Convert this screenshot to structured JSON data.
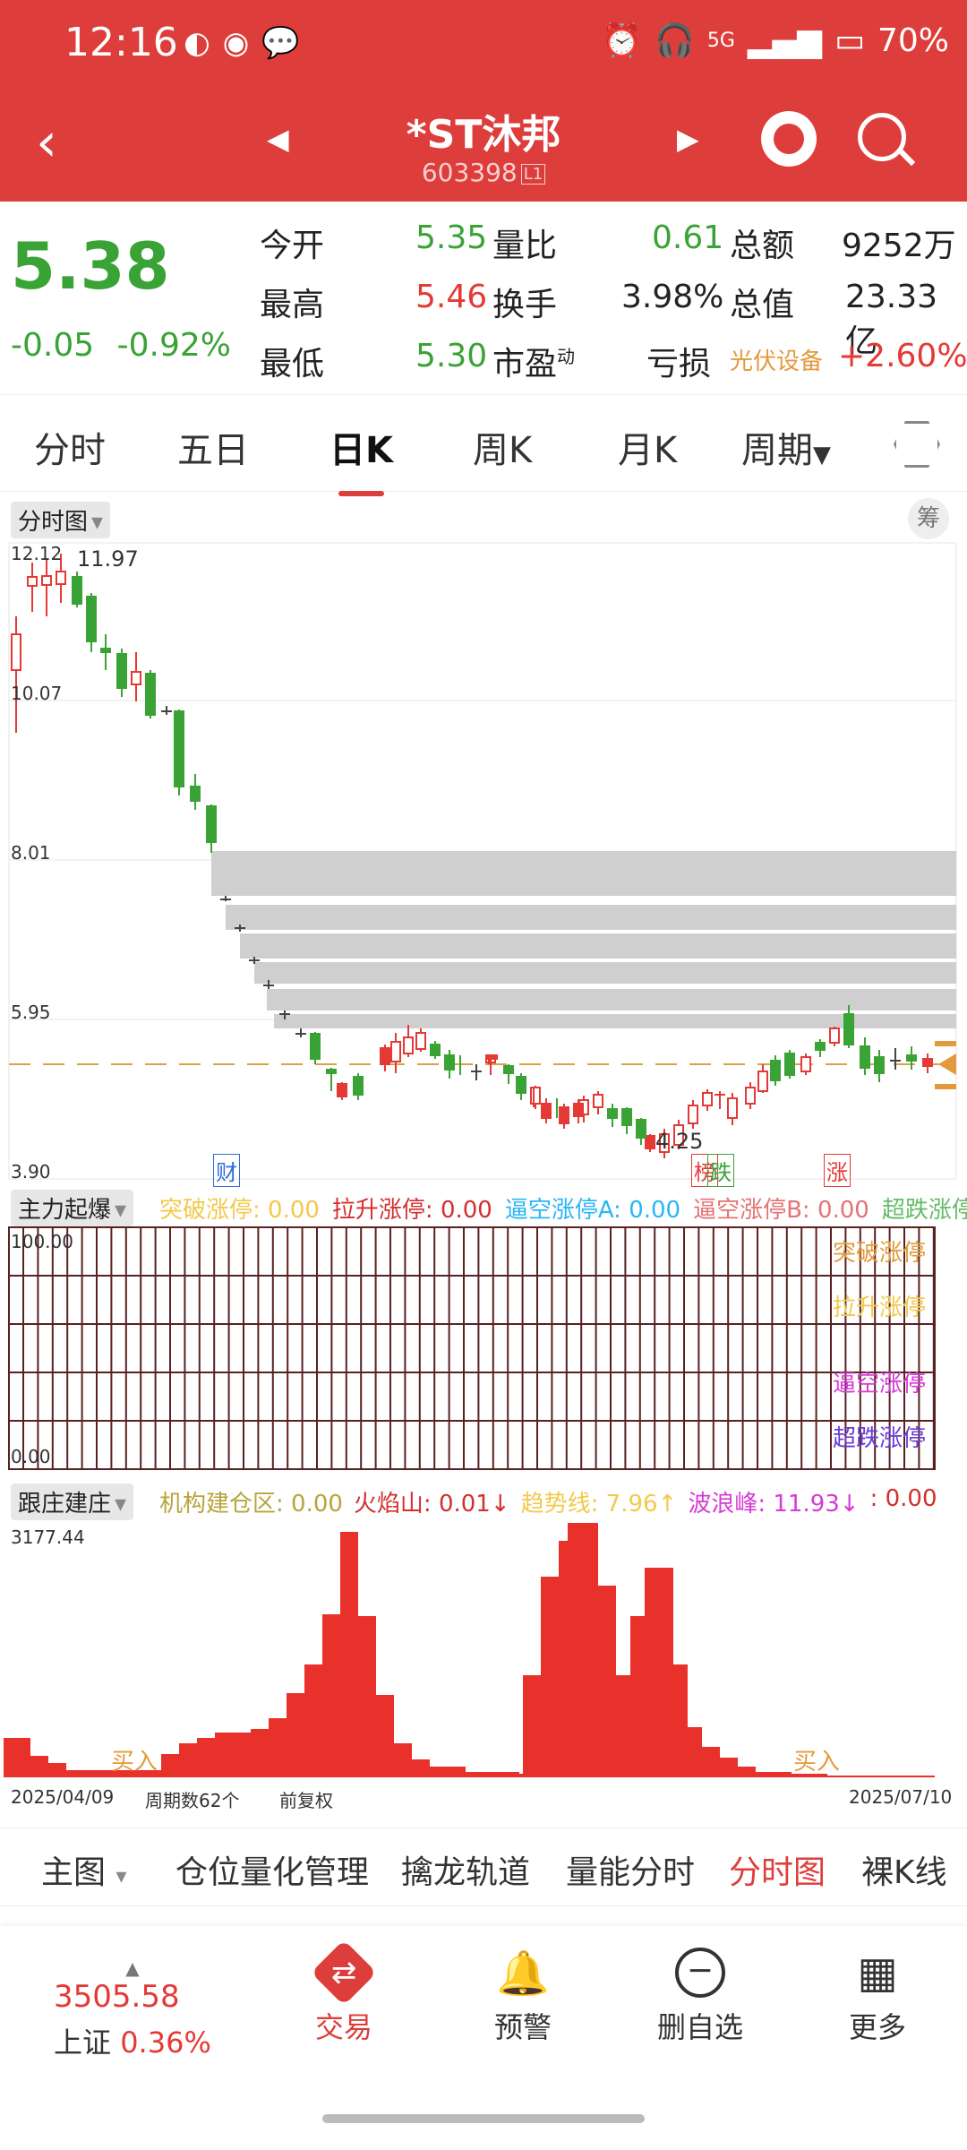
{
  "status": {
    "time": "12:16",
    "battery": "70%",
    "network": "5G"
  },
  "header": {
    "title": "*ST沐邦",
    "code": "603398",
    "level": "L1"
  },
  "quote": {
    "price": "5.38",
    "change": "-0.05",
    "change_pct": "-0.92%",
    "rows": [
      {
        "k1": "今开",
        "v1": "5.35",
        "k2": "量比",
        "v2": "0.61",
        "k3": "总额",
        "v3": "9252万"
      },
      {
        "k1": "最高",
        "v1": "5.46",
        "k2": "换手",
        "v2": "3.98%",
        "k3": "总值",
        "v3": "23.33亿"
      },
      {
        "k1": "最低",
        "v1": "5.30",
        "k2": "市盈",
        "v2": "亏损",
        "k3": "光伏设备",
        "v3": "+2.60%"
      }
    ],
    "pe_sup": "动"
  },
  "tabs": [
    "分时",
    "五日",
    "日K",
    "周K",
    "月K",
    "周期"
  ],
  "chart": {
    "main_chip": "分时图",
    "chou": "筹",
    "y_ticks": [
      "12.12",
      "10.07",
      "8.01",
      "5.95",
      "3.90"
    ],
    "high_label": "11.97",
    "low_label": "4.25",
    "markers": [
      "财",
      "榜",
      "跌",
      "涨"
    ],
    "ind1": {
      "chip": "主力起爆",
      "items": [
        {
          "label": "突破涨停: 0.00",
          "color": "#f2c94c"
        },
        {
          "label": "拉升涨停: 0.00",
          "color": "#d32f2f"
        },
        {
          "label": "逼空涨停A: 0.00",
          "color": "#29b6f6"
        },
        {
          "label": "逼空涨停B: 0.00",
          "color": "#e57373"
        },
        {
          "label": "超跌涨停",
          "color": "#66bb6a"
        }
      ],
      "top": "100.00",
      "bottom": "0.00",
      "right_legend": [
        {
          "label": "突破涨停",
          "color": "#e39a3b"
        },
        {
          "label": "拉升涨停",
          "color": "#f2c94c"
        },
        {
          "label": "",
          "color": "#ffffff"
        },
        {
          "label": "逼空涨停",
          "color": "#d63bd6"
        },
        {
          "label": "超跌涨停",
          "color": "#6a3bd6"
        }
      ]
    },
    "ind2": {
      "chip": "跟庄建庄",
      "items": [
        {
          "label": "机构建仓区: 0.00",
          "color": "#b8a43b"
        },
        {
          "label": "火焰山: 0.01↓",
          "color": "#d32f2f"
        },
        {
          "label": "趋势线: 7.96↑",
          "color": "#f2c94c"
        },
        {
          "label": "波浪峰: 11.93↓",
          "color": "#d63bd6"
        },
        {
          "label": ": 0.00",
          "color": "#d32f2f"
        }
      ],
      "top": "3177.44",
      "buy_label": "买入",
      "date_start": "2025/04/09",
      "period_count": "周期数62个",
      "adjust": "前复权",
      "date_end": "2025/07/10"
    }
  },
  "bottom_tabs": [
    "主图",
    "仓位量化管理",
    "擒龙轨道",
    "量能分时",
    "分时图",
    "裸K线"
  ],
  "bottom_nav": {
    "index_value": "3505.58",
    "index_name": "上证",
    "index_change": "0.36%",
    "items": [
      "交易",
      "预警",
      "删自选",
      "更多"
    ]
  },
  "colors": {
    "brand": "#de3e3b",
    "up": "#e53935",
    "down": "#3aa335"
  }
}
